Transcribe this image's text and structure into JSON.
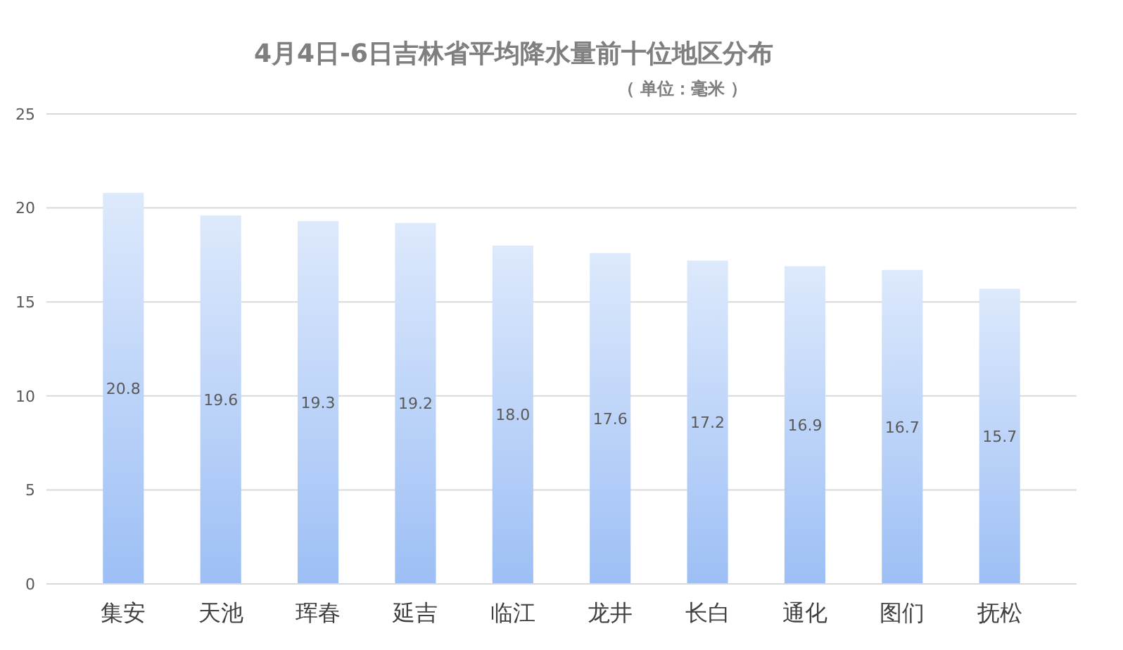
{
  "chart_data": {
    "type": "bar",
    "title": "4月4日-6日吉林省平均降水量前十位地区分布",
    "subtitle": "（ 单位：毫米 ）",
    "categories": [
      "集安",
      "天池",
      "珲春",
      "延吉",
      "临江",
      "龙井",
      "长白",
      "通化",
      "图们",
      "抚松"
    ],
    "values": [
      20.8,
      19.6,
      19.3,
      19.2,
      18.0,
      17.6,
      17.2,
      16.9,
      16.7,
      15.7
    ],
    "value_labels": [
      "20.8",
      "19.6",
      "19.3",
      "19.2",
      "18.0",
      "17.6",
      "17.2",
      "16.9",
      "16.7",
      "15.7"
    ],
    "color": "#9dbff5",
    "ylim": [
      0,
      25
    ],
    "yticks": [
      0,
      5,
      10,
      15,
      20,
      25
    ],
    "grid": "y"
  }
}
